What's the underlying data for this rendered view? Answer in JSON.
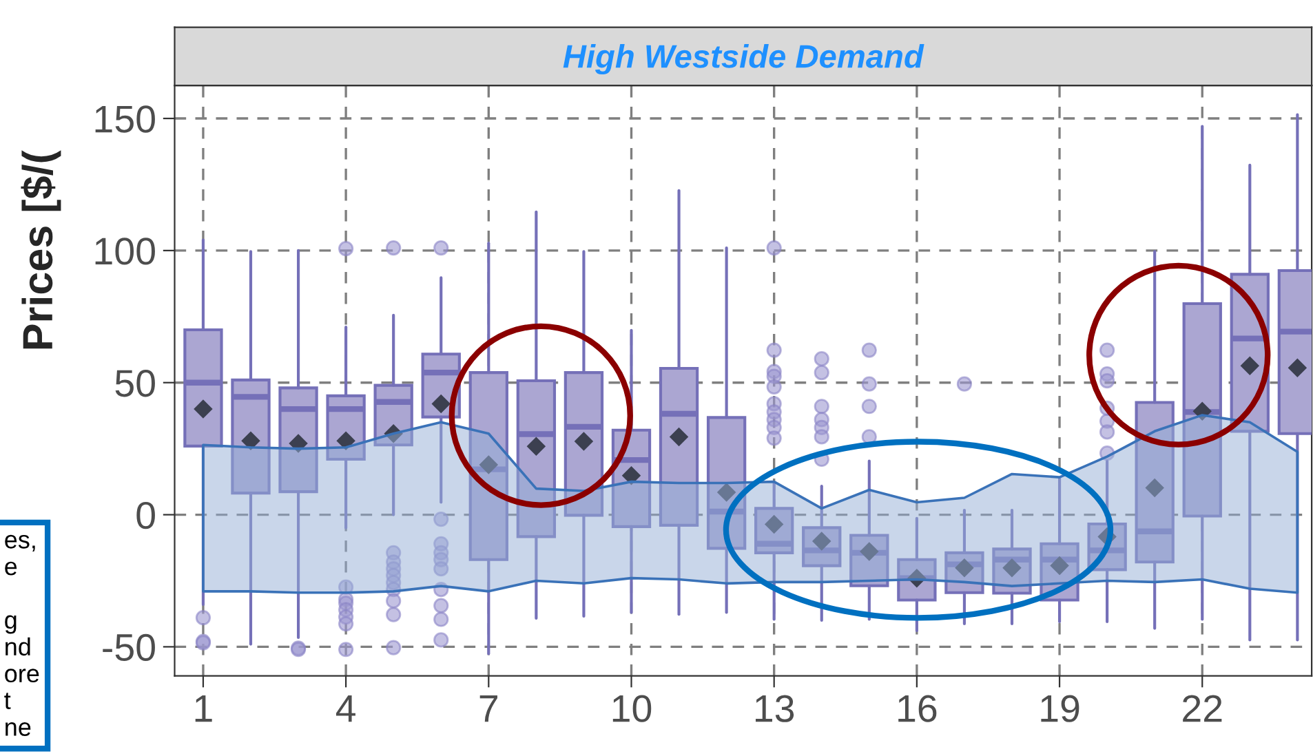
{
  "chart_data": {
    "type": "box",
    "title": "High Westside Demand",
    "ylabel": "Prices [$/(",
    "annotations": [
      "es,\ne\n\ng\nnd\nore\nt\nne"
    ],
    "x": [
      1,
      2,
      3,
      4,
      5,
      6,
      7,
      8,
      9,
      10,
      11,
      12,
      13,
      14,
      15,
      16,
      17,
      18,
      19,
      20,
      21,
      22,
      23,
      24
    ],
    "xlim": [
      0.4,
      24.3
    ],
    "xticks": [
      1,
      4,
      7,
      10,
      13,
      16,
      19,
      22
    ],
    "ylim": [
      -61,
      162.5
    ],
    "yticks": [
      -50,
      0,
      50,
      100,
      150
    ],
    "grid": true,
    "series": [
      {
        "type": "line",
        "color": "#3a72b8",
        "values": [
          null,
          null,
          null,
          null,
          null,
          null,
          null,
          null,
          null,
          null,
          null,
          null,
          null,
          null,
          null,
          null,
          null,
          null,
          null,
          null,
          null,
          null,
          null,
          null
        ],
        "upper": [
          26.4,
          25.5,
          25,
          25.5,
          30.7,
          35,
          30.7,
          9.9,
          9,
          12.5,
          12,
          12,
          12.5,
          2.4,
          9.4,
          4.7,
          6.4,
          15.4,
          14.2,
          22,
          31.6,
          37.7,
          35,
          23.8
        ],
        "lower": [
          -29,
          -29,
          -29.5,
          -29.5,
          -29,
          -27,
          -29,
          -25,
          -26,
          -24,
          -24.5,
          -26,
          -25.5,
          -25.5,
          -25,
          -24.5,
          -25.5,
          -27,
          -26,
          -25,
          -25.5,
          -24.5,
          -28,
          -29.5
        ]
      },
      {
        "color": "#7570b8",
        "boxes": [
          {
            "low": -34,
            "q1": 26,
            "median": 50,
            "q3": 70,
            "high": 104,
            "mean": 40,
            "outliers": [
              -39,
              -48,
              -48.5
            ]
          },
          {
            "low": -49,
            "q1": 8.2,
            "median": 44.6,
            "q3": 51,
            "high": 99.6,
            "mean": 28
          },
          {
            "low": -46.5,
            "q1": 8.7,
            "median": 40,
            "q3": 48,
            "high": 100,
            "mean": 27,
            "outliers": [
              -50.5,
              -51
            ]
          },
          {
            "low": -5,
            "q1": 21,
            "median": 40,
            "q3": 45,
            "high": 71,
            "mean": 28,
            "outliers": [
              100.7,
              -27.4,
              -32,
              -33.5,
              -36,
              -38.7,
              -41.3,
              -51
            ]
          },
          {
            "low": 0,
            "q1": 26.4,
            "median": 42.7,
            "q3": 49,
            "high": 75.5,
            "mean": 30.7,
            "outliers": [
              101,
              -14.4,
              -17.9,
              -20.5,
              -23,
              -25.7,
              -28.3,
              -32.6,
              -37.8,
              -50.3
            ]
          },
          {
            "low": 4.7,
            "q1": 37,
            "median": 53.8,
            "q3": 60.8,
            "high": 89.7,
            "mean": 42,
            "outliers": [
              101,
              -1.7,
              -11,
              -14.4,
              -17,
              -20.5,
              -28.3,
              -34.4,
              -39.6,
              -47.4
            ]
          },
          {
            "low": -52.6,
            "q1": -17,
            "median": 17.2,
            "q3": 53.8,
            "high": 102.8,
            "mean": 18.9
          },
          {
            "low": -39.2,
            "q1": -8.3,
            "median": 30.5,
            "q3": 50.7,
            "high": 114.6,
            "mean": 25.9
          },
          {
            "low": -38.4,
            "q1": -0.2,
            "median": 33.3,
            "q3": 53.8,
            "high": 99.6,
            "mean": 27.8
          },
          {
            "low": -37,
            "q1": -4.5,
            "median": 20.7,
            "q3": 32,
            "high": 69.8,
            "mean": 14.8
          },
          {
            "low": -37.7,
            "q1": -4,
            "median": 38.2,
            "q3": 55.4,
            "high": 122.7,
            "mean": 29.5
          },
          {
            "low": -37,
            "q1": -12.7,
            "median": 1.2,
            "q3": 36.8,
            "high": 101,
            "mean": 8.5
          },
          {
            "low": -39.6,
            "q1": -14.4,
            "median": -11,
            "q3": 2.4,
            "high": 12,
            "mean": -3.6,
            "outliers": [
              101,
              62.3,
              54.2,
              52.4,
              48.4,
              42,
              38.9,
              36,
              33,
              29
            ]
          },
          {
            "low": -40,
            "q1": -19.3,
            "median": -13.5,
            "q3": -4.9,
            "high": 10.8,
            "mean": -10,
            "outliers": [
              59,
              53.8,
              41,
              36,
              33,
              29.5,
              21
            ]
          },
          {
            "low": -39.6,
            "q1": -26.9,
            "median": -14.4,
            "q3": -7.8,
            "high": 20.3,
            "mean": -13.9,
            "outliers": [
              62.3,
              49.5,
              41,
              29.5
            ]
          },
          {
            "low": -43.9,
            "q1": -32.3,
            "median": -24,
            "q3": -17,
            "high": -1.4,
            "mean": -24
          },
          {
            "low": -41.3,
            "q1": -29.5,
            "median": -18.8,
            "q3": -14.4,
            "high": 1.7,
            "mean": -20.1,
            "outliers": [
              49.5
            ]
          },
          {
            "low": -41.3,
            "q1": -29.7,
            "median": -17,
            "q3": -13,
            "high": 1.7,
            "mean": -20.1
          },
          {
            "low": -40.5,
            "q1": -32.3,
            "median": -17,
            "q3": -11,
            "high": 14,
            "mean": -19.3
          },
          {
            "low": -40.5,
            "q1": -20.8,
            "median": -13.5,
            "q3": -3.5,
            "high": 20.3,
            "mean": -8.3,
            "outliers": [
              62.3,
              53.3,
              50.7,
              40.3,
              35.4,
              31.3,
              23.3
            ]
          },
          {
            "low": -43,
            "q1": -17.9,
            "median": -6.3,
            "q3": 42.5,
            "high": 99.6,
            "mean": 10.2
          },
          {
            "low": -39.6,
            "q1": -0.5,
            "median": 38.9,
            "q3": 79.9,
            "high": 147,
            "mean": 39.2
          },
          {
            "low": -47.4,
            "q1": 31.6,
            "median": 66.7,
            "q3": 91,
            "high": 132.3,
            "mean": 56.4
          },
          {
            "low": -47.4,
            "q1": 30.7,
            "median": 69.3,
            "q3": 92.4,
            "high": 151.4,
            "mean": 55.6
          }
        ]
      }
    ]
  }
}
